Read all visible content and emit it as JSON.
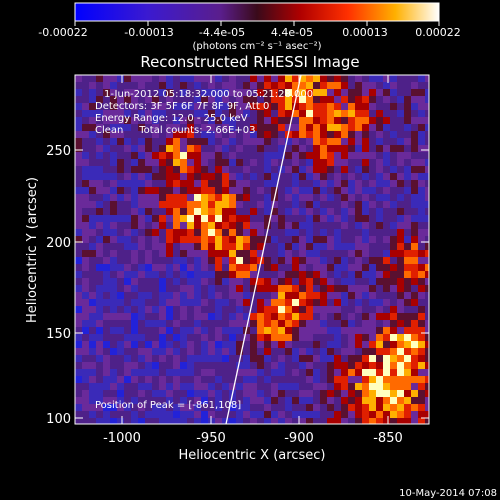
{
  "colorbar": {
    "tick_labels": [
      "-0.00022",
      "-0.00013",
      "-4.4e-05",
      "4.4e-05",
      "0.00013",
      "0.00022"
    ],
    "unit_label": "(photons cm⁻² s⁻¹ asec⁻²)"
  },
  "title": "Reconstructed RHESSI Image",
  "info": {
    "time_range": "1-Jun-2012 05:18:32.000 to 05:21:28.000",
    "detectors": "Detectors: 3F 5F 6F 7F 8F 9F, Att 0",
    "energy": "Energy Range: 12.0 - 25.0 keV",
    "clean": "Clean     Total counts: 2.66E+03"
  },
  "peak_label": "Position of Peak = [-861,108]",
  "axes": {
    "xlabel": "Heliocentric X (arcsec)",
    "ylabel": "Heliocentric Y (arcsec)",
    "xticks": [
      "-1000",
      "-950",
      "-900",
      "-850"
    ],
    "yticks": [
      "250",
      "200",
      "150",
      "100"
    ]
  },
  "timestamp": "10-May-2014 07:08",
  "colors": {
    "low": "#0000ff",
    "mid": "#6a2a9a",
    "high": "#ff2a00",
    "peak": "#ffffc0"
  }
}
